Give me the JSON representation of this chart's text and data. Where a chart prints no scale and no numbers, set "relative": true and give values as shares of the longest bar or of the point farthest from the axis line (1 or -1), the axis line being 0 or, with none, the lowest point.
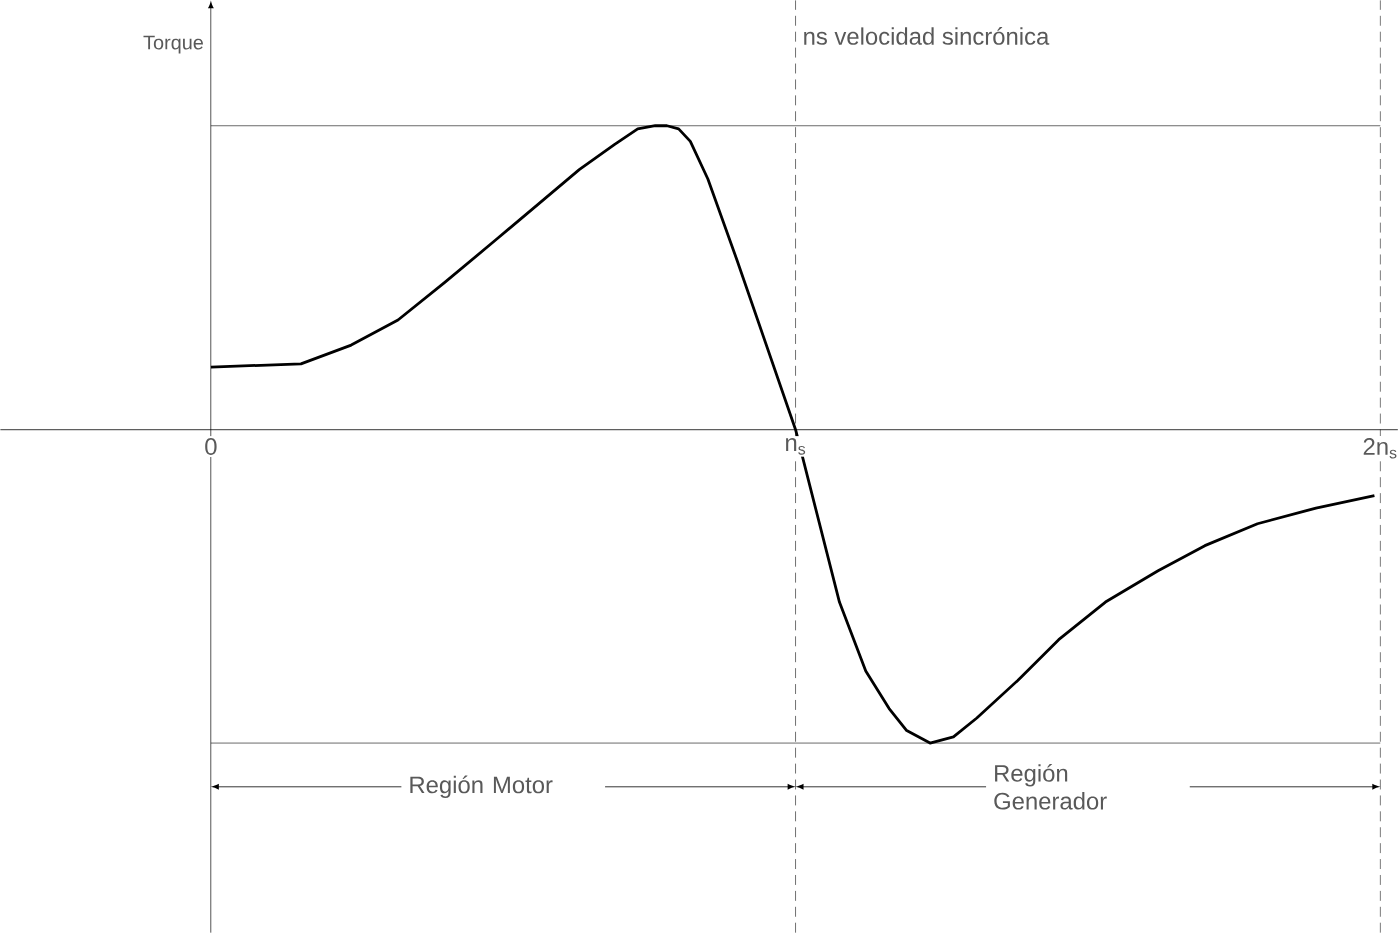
{
  "chart_data": {
    "type": "line",
    "relative": true,
    "ylabel": "Torque",
    "xlim": [
      -0.36,
      2.03
    ],
    "xticks": [
      {
        "value": 0,
        "label": "0"
      },
      {
        "value": 1,
        "label": "n$_{s}$"
      },
      {
        "value": 2,
        "label": "2n$_{s}$"
      }
    ],
    "series": [
      {
        "color": "#000000",
        "x": [
          0,
          0.154,
          0.24,
          0.32,
          0.4,
          0.49,
          0.56,
          0.63,
          0.69,
          0.73,
          0.76,
          0.78,
          0.8,
          0.82,
          0.85,
          0.9,
          1.0,
          1.075,
          1.12,
          1.16,
          1.19,
          1.23,
          1.27,
          1.31,
          1.38,
          1.45,
          1.53,
          1.62,
          1.7,
          1.79,
          1.89,
          1.99
        ],
        "values": [
          0.2,
          0.21,
          0.27,
          0.35,
          0.47,
          0.61,
          0.72,
          0.83,
          0.91,
          0.96,
          0.97,
          0.97,
          0.96,
          0.92,
          0.8,
          0.54,
          0,
          -0.55,
          -0.77,
          -0.89,
          -0.96,
          -1.0,
          -0.98,
          -0.92,
          -0.8,
          -0.67,
          -0.55,
          -0.45,
          -0.37,
          -0.3,
          -0.25,
          -0.21
        ]
      }
    ],
    "ref_lines": [
      {
        "axis": "y",
        "value": 0.97,
        "color": "#444444",
        "line_style": "solid"
      },
      {
        "axis": "y",
        "value": -1.0,
        "color": "#444444",
        "line_style": "solid"
      },
      {
        "axis": "x",
        "value": 1,
        "label": "ns velocidad sincrónica",
        "color": "#444444",
        "line_style": "dashed"
      },
      {
        "axis": "x",
        "value": 2,
        "color": "#444444",
        "line_style": "dashed"
      }
    ],
    "annotations": [
      "Región Motor",
      "Región Generador"
    ],
    "grid": false,
    "marker": "none",
    "line_style": "solid"
  }
}
